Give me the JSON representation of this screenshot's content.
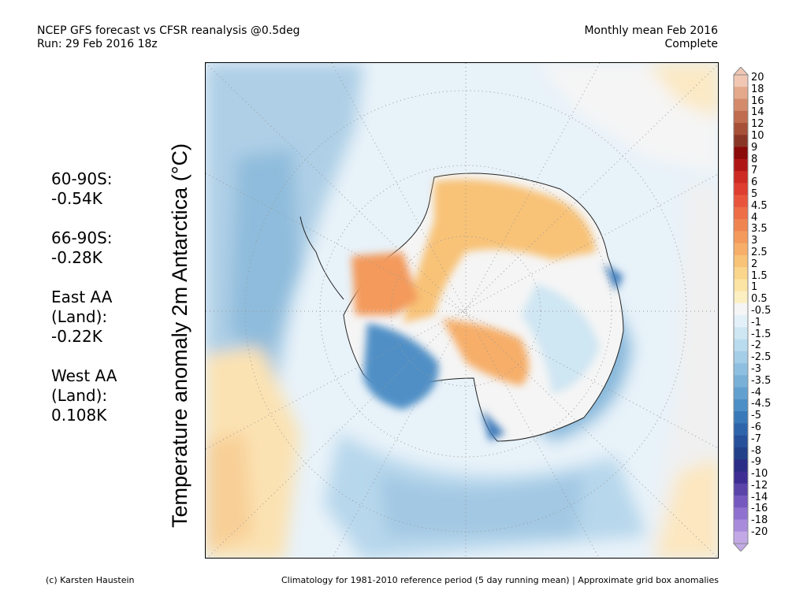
{
  "header": {
    "line1": "NCEP GFS forecast vs CFSR reanalysis @0.5deg",
    "line2": "Run: 29 Feb 2016 18z",
    "right1": "Monthly mean Feb 2016",
    "right2": "Complete"
  },
  "title": "Temperature anomaly 2m Antarctica (°C)",
  "stats": [
    {
      "name": "60-90S:",
      "value": "-0.54K"
    },
    {
      "name": "66-90S:",
      "value": "-0.28K"
    },
    {
      "name": "East AA",
      "name2": "(Land):",
      "value": "-0.22K"
    },
    {
      "name": "West AA",
      "name2": "(Land):",
      "value": "0.108K"
    }
  ],
  "colorbar": {
    "labels": [
      "20",
      "18",
      "16",
      "14",
      "12",
      "10",
      "9",
      "8",
      "7",
      "6",
      "5",
      "4.5",
      "4",
      "3.5",
      "3",
      "2.5",
      "2",
      "1.5",
      "1",
      "0.5",
      "-0.5",
      "-1",
      "-1.5",
      "-2",
      "-2.5",
      "-3",
      "-3.5",
      "-4",
      "-4.5",
      "-5",
      "-6",
      "-7",
      "-8",
      "-9",
      "-10",
      "-12",
      "-14",
      "-16",
      "-18",
      "-20"
    ],
    "colors": [
      "#f1c7b4",
      "#e4a88b",
      "#d48b6c",
      "#c06c4e",
      "#a65038",
      "#8a3626",
      "#8b0a0a",
      "#b01515",
      "#cc2a22",
      "#de3d2f",
      "#e8553c",
      "#ed6e47",
      "#f08451",
      "#f49a5d",
      "#f6ae69",
      "#f8c277",
      "#fad58c",
      "#fbe4a4",
      "#fcf0c3",
      "#f5f5f5",
      "#e3f0f8",
      "#cfe6f3",
      "#b9dbee",
      "#a4cde7",
      "#8ebfe0",
      "#78b0d8",
      "#62a0cf",
      "#4c8ec6",
      "#3a79b9",
      "#2e64aa",
      "#27509a",
      "#22408a",
      "#2b2c86",
      "#3e2e94",
      "#5a44aa",
      "#7659bf",
      "#8f72cf",
      "#a88cdb",
      "#c2a9e6"
    ]
  },
  "footer": {
    "left": "(c) Karsten Haustein",
    "right": "Climatology for 1981-2010 reference period (5 day running mean) | Approximate grid box anomalies"
  }
}
